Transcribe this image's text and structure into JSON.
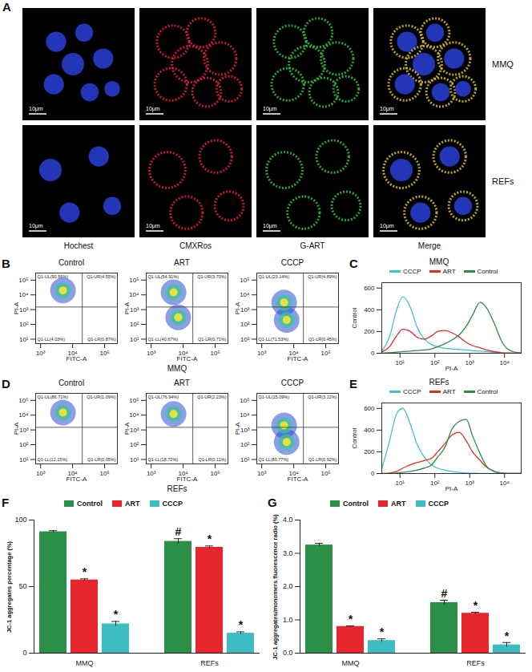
{
  "figure_A": {
    "panel": "A",
    "columns": [
      "Hochest",
      "CMXRos",
      "G-ART",
      "Merge"
    ],
    "rows": [
      "MMQ",
      "REFs"
    ],
    "scale_bar": "10μm"
  },
  "chart_data": [
    {
      "panel": "B",
      "type": "flow_quadrant",
      "caption": "MMQ",
      "x_label": "FITC-A",
      "y_label": "PI-A",
      "log": true,
      "xlim": [
        700,
        250000
      ],
      "xticks": [
        {
          "value": 1000,
          "label": "10³"
        },
        {
          "value": 10000,
          "label": "10⁴"
        },
        {
          "value": 100000,
          "label": "10⁵"
        }
      ],
      "ylim": [
        5,
        300000
      ],
      "yticks": [
        {
          "value": 10,
          "label": "10¹"
        },
        {
          "value": 100,
          "label": "10²"
        },
        {
          "value": 1000,
          "label": "10³"
        },
        {
          "value": 10000,
          "label": "10⁴"
        },
        {
          "value": 100000,
          "label": "10⁵"
        }
      ],
      "gate_x": 20000,
      "gate_y": 1500,
      "plots": [
        {
          "title": "Control",
          "quadrants": [
            {
              "name": "Q1-UL",
              "value": 90.56,
              "label": "Q1-UL(90.56%)"
            },
            {
              "name": "Q1-UR",
              "value": 4.55,
              "label": "Q1-UR(4.55%)"
            },
            {
              "name": "Q1-LL",
              "value": 4.03,
              "label": "Q1-LL(4.03%)"
            },
            {
              "name": "Q1-LR",
              "value": 0.87,
              "label": "Q1-LR(0.87%)"
            }
          ],
          "populations": [
            {
              "x": 5000,
              "y": 20000
            }
          ]
        },
        {
          "title": "ART",
          "quadrants": [
            {
              "name": "Q1-UL",
              "value": 54.91,
              "label": "Q1-UL(54.91%)"
            },
            {
              "name": "Q1-UR",
              "value": 3.7,
              "label": "Q1-UR(3.70%)"
            },
            {
              "name": "Q1-LL",
              "value": 40.67,
              "label": "Q1-LL(40.67%)"
            },
            {
              "name": "Q1-LR",
              "value": 0.71,
              "label": "Q1-LR(0.71%)"
            }
          ],
          "populations": [
            {
              "x": 5000,
              "y": 15000
            },
            {
              "x": 7000,
              "y": 300
            }
          ]
        },
        {
          "title": "CCCP",
          "quadrants": [
            {
              "name": "Q1-UL",
              "value": 23.14,
              "label": "Q1-UL(23.14%)"
            },
            {
              "name": "Q1-UR",
              "value": 4.89,
              "label": "Q1-UR(4.89%)"
            },
            {
              "name": "Q1-LL",
              "value": 71.53,
              "label": "Q1-LL(71.53%)"
            },
            {
              "name": "Q1-LR",
              "value": 0.45,
              "label": "Q1-LR(0.45%)"
            }
          ],
          "populations": [
            {
              "x": 6000,
              "y": 200
            },
            {
              "x": 5000,
              "y": 3000
            }
          ]
        }
      ]
    },
    {
      "panel": "C",
      "type": "line",
      "title": "MMQ",
      "x_label": "PI-A",
      "y_label": "Control",
      "log": "x",
      "legend": "top",
      "x": [
        3,
        5,
        8,
        12,
        20,
        30,
        50,
        80,
        120,
        200,
        300,
        500,
        800,
        1200,
        2000,
        3000,
        5000,
        8000,
        12000,
        20000,
        30000
      ],
      "xlim": [
        3,
        30000
      ],
      "xticks": [
        {
          "value": 10,
          "label": "10¹"
        },
        {
          "value": 100,
          "label": "10²"
        },
        {
          "value": 1000,
          "label": "10³"
        },
        {
          "value": 10000,
          "label": "10⁴"
        }
      ],
      "ylim": [
        0,
        650
      ],
      "yticks": [
        0,
        200,
        400,
        600
      ],
      "series": [
        {
          "name": "CCCP",
          "color": "#40c4c4",
          "values": [
            20,
            150,
            400,
            520,
            420,
            250,
            130,
            80,
            60,
            45,
            40,
            35,
            30,
            25,
            20,
            15,
            8,
            3,
            1,
            0,
            0
          ]
        },
        {
          "name": "ART",
          "color": "#d9302c",
          "values": [
            10,
            60,
            160,
            220,
            200,
            150,
            130,
            160,
            200,
            210,
            190,
            150,
            100,
            70,
            50,
            30,
            15,
            5,
            2,
            0,
            0
          ]
        },
        {
          "name": "Control",
          "color": "#2e8b4a",
          "values": [
            0,
            5,
            10,
            15,
            20,
            25,
            30,
            40,
            60,
            90,
            120,
            170,
            250,
            350,
            470,
            420,
            280,
            120,
            40,
            10,
            2
          ]
        }
      ]
    },
    {
      "panel": "D",
      "type": "flow_quadrant",
      "caption": "REFs",
      "x_label": "FITC-A",
      "y_label": "PI-A",
      "log": true,
      "xlim": [
        700,
        250000
      ],
      "xticks": [
        {
          "value": 1000,
          "label": "10³"
        },
        {
          "value": 10000,
          "label": "10⁴"
        },
        {
          "value": 100000,
          "label": "10⁵"
        }
      ],
      "ylim": [
        5,
        300000
      ],
      "yticks": [
        {
          "value": 10,
          "label": "10¹"
        },
        {
          "value": 100,
          "label": "10²"
        },
        {
          "value": 1000,
          "label": "10³"
        },
        {
          "value": 10000,
          "label": "10⁴"
        },
        {
          "value": 100000,
          "label": "10⁵"
        }
      ],
      "gate_x": 20000,
      "gate_y": 1500,
      "plots": [
        {
          "title": "Control",
          "quadrants": [
            {
              "name": "Q1-UL",
              "value": 86.71,
              "label": "Q1-UL(86.71%)"
            },
            {
              "name": "Q1-UR",
              "value": 1.09,
              "label": "Q1-UR(1.09%)"
            },
            {
              "name": "Q1-LL",
              "value": 12.15,
              "label": "Q1-LL(12.15%)"
            },
            {
              "name": "Q1-LR",
              "value": 0.05,
              "label": "Q1-LR(0.05%)"
            }
          ],
          "populations": [
            {
              "x": 5000,
              "y": 15000
            }
          ]
        },
        {
          "title": "ART",
          "quadrants": [
            {
              "name": "Q1-UL",
              "value": 76.94,
              "label": "Q1-UL(76.94%)"
            },
            {
              "name": "Q1-UR",
              "value": 2.23,
              "label": "Q1-UR(2.23%)"
            },
            {
              "name": "Q1-LL",
              "value": 18.72,
              "label": "Q1-LL(18.72%)"
            },
            {
              "name": "Q1-LR",
              "value": 0.11,
              "label": "Q1-LR(0.11%)"
            }
          ],
          "populations": [
            {
              "x": 5000,
              "y": 12000
            }
          ]
        },
        {
          "title": "CCCP",
          "quadrants": [
            {
              "name": "Q1-UL",
              "value": 15.09,
              "label": "Q1-UL(15.09%)"
            },
            {
              "name": "Q1-UR",
              "value": 3.22,
              "label": "Q1-UR(3.22%)"
            },
            {
              "name": "Q1-LL",
              "value": 80.77,
              "label": "Q1-LL(80.77%)"
            },
            {
              "name": "Q1-LR",
              "value": 0.92,
              "label": "Q1-LR(0.92%)"
            }
          ],
          "populations": [
            {
              "x": 6000,
              "y": 150
            },
            {
              "x": 5000,
              "y": 2000
            }
          ]
        }
      ]
    },
    {
      "panel": "E",
      "type": "line",
      "title": "REFs",
      "x_label": "PI-A",
      "y_label": "Control",
      "log": "x",
      "legend": "top",
      "x": [
        3,
        5,
        8,
        12,
        20,
        30,
        50,
        80,
        120,
        200,
        300,
        500,
        800,
        1200,
        2000,
        3000,
        5000,
        8000,
        12000,
        20000,
        30000
      ],
      "xlim": [
        3,
        30000
      ],
      "xticks": [
        {
          "value": 10,
          "label": "10¹"
        },
        {
          "value": 100,
          "label": "10²"
        },
        {
          "value": 1000,
          "label": "10³"
        },
        {
          "value": 10000,
          "label": "10⁴"
        }
      ],
      "ylim": [
        0,
        650
      ],
      "yticks": [
        0,
        200,
        400,
        600
      ],
      "series": [
        {
          "name": "CCCP",
          "color": "#40c4c4",
          "values": [
            40,
            300,
            550,
            600,
            450,
            280,
            150,
            80,
            50,
            30,
            20,
            10,
            5,
            3,
            1,
            0,
            0,
            0,
            0,
            0,
            0
          ]
        },
        {
          "name": "ART",
          "color": "#d9302c",
          "values": [
            0,
            5,
            20,
            50,
            80,
            100,
            120,
            140,
            200,
            280,
            350,
            380,
            300,
            200,
            120,
            60,
            20,
            5,
            1,
            0,
            0
          ]
        },
        {
          "name": "Control",
          "color": "#2e8b4a",
          "values": [
            0,
            0,
            5,
            10,
            20,
            30,
            50,
            80,
            150,
            250,
            400,
            480,
            500,
            350,
            180,
            70,
            20,
            5,
            1,
            0,
            0
          ]
        }
      ]
    },
    {
      "panel": "F",
      "type": "bar",
      "y_label": "JC-1 aggregates percentage (%)",
      "legend": "top",
      "categories": [
        "MMQ",
        "REFs"
      ],
      "ylim": [
        0,
        100
      ],
      "yticks": [
        0,
        50,
        100
      ],
      "series": [
        {
          "name": "Control",
          "color": "#2b8f47",
          "values": [
            91.2,
            84
          ],
          "errors": [
            0.8,
            2.0
          ],
          "significance": [
            null,
            "#"
          ]
        },
        {
          "name": "ART",
          "color": "#e5262c",
          "values": [
            55,
            79.5
          ],
          "errors": [
            0.8,
            1.0
          ],
          "significance": [
            "*",
            "*"
          ]
        },
        {
          "name": "CCCP",
          "color": "#3dbdc1",
          "values": [
            22,
            15
          ],
          "errors": [
            1.8,
            1.0
          ],
          "significance": [
            "*",
            "*"
          ]
        }
      ]
    },
    {
      "panel": "G",
      "type": "bar",
      "y_label": "JC-1 aggregates/monomers fluorescence radio (%)",
      "legend": "top",
      "categories": [
        "MMQ",
        "REFs"
      ],
      "ylim": [
        0,
        4
      ],
      "yticks": [
        0,
        1,
        2,
        3,
        4
      ],
      "series": [
        {
          "name": "Control",
          "color": "#2b8f47",
          "values": [
            3.25,
            1.52
          ],
          "errors": [
            0.05,
            0.07
          ],
          "significance": [
            null,
            "#"
          ]
        },
        {
          "name": "ART",
          "color": "#e5262c",
          "values": [
            0.8,
            1.2
          ],
          "errors": [
            0.02,
            0.03
          ],
          "significance": [
            "*",
            "*"
          ]
        },
        {
          "name": "CCCP",
          "color": "#3dbdc1",
          "values": [
            0.38,
            0.25
          ],
          "errors": [
            0.05,
            0.07
          ],
          "significance": [
            "*",
            "*"
          ]
        }
      ]
    }
  ]
}
